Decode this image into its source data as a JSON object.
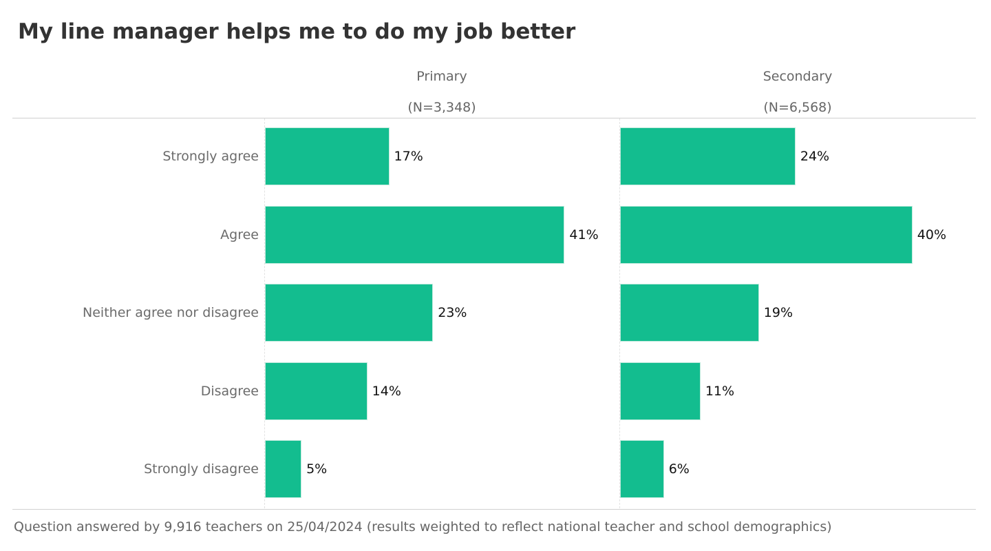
{
  "chart_data": {
    "type": "bar",
    "orientation": "horizontal",
    "title": "My line manager helps me to do my job better",
    "categories": [
      "Strongly agree",
      "Agree",
      "Neither agree nor disagree",
      "Disagree",
      "Strongly disagree"
    ],
    "panels": [
      {
        "name": "Primary",
        "n_label": "(N=3,348)",
        "values": [
          17,
          41,
          23,
          14,
          5
        ],
        "labels": [
          "17%",
          "41%",
          "23%",
          "14%",
          "5%"
        ]
      },
      {
        "name": "Secondary",
        "n_label": "(N=6,568)",
        "values": [
          24,
          40,
          19,
          11,
          6
        ],
        "labels": [
          "24%",
          "40%",
          "19%",
          "11%",
          "6%"
        ]
      }
    ],
    "xlabel": "",
    "ylabel": "",
    "xlim": [
      0,
      45
    ],
    "grid": false,
    "bar_color": "#13bd8f",
    "footer": "Question answered by 9,916 teachers on 25/04/2024 (results weighted to reflect national teacher and school demographics)"
  }
}
